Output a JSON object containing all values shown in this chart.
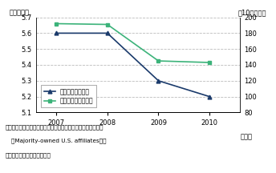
{
  "years": [
    2007,
    2008,
    2009,
    2010
  ],
  "employment": [
    5.6,
    5.6,
    5.3,
    5.2
  ],
  "investment": [
    192,
    191,
    145,
    143
  ],
  "left_ylim": [
    5.1,
    5.7
  ],
  "right_ylim": [
    80,
    200
  ],
  "left_yticks": [
    5.1,
    5.2,
    5.3,
    5.4,
    5.5,
    5.6,
    5.7
  ],
  "right_yticks": [
    80,
    100,
    120,
    140,
    160,
    180,
    200
  ],
  "left_ylabel": "（百万人）",
  "right_ylabel": "（10億ドル）",
  "xlabel": "（年）",
  "legend_employment": "雇用者数（左軸）",
  "legend_investment": "設備投資額（右軸）",
  "employment_color": "#1a3a6b",
  "investment_color": "#3cb37a",
  "note1": "備考：米国子会社は海外多国籍企業の議決権過半数所有子会社",
  "note2": "（Majority-owned U.S. affiliates）。",
  "note3": "資料：米国商務省から作成。",
  "bg_color": "#ffffff",
  "grid_color": "#bbbbbb"
}
